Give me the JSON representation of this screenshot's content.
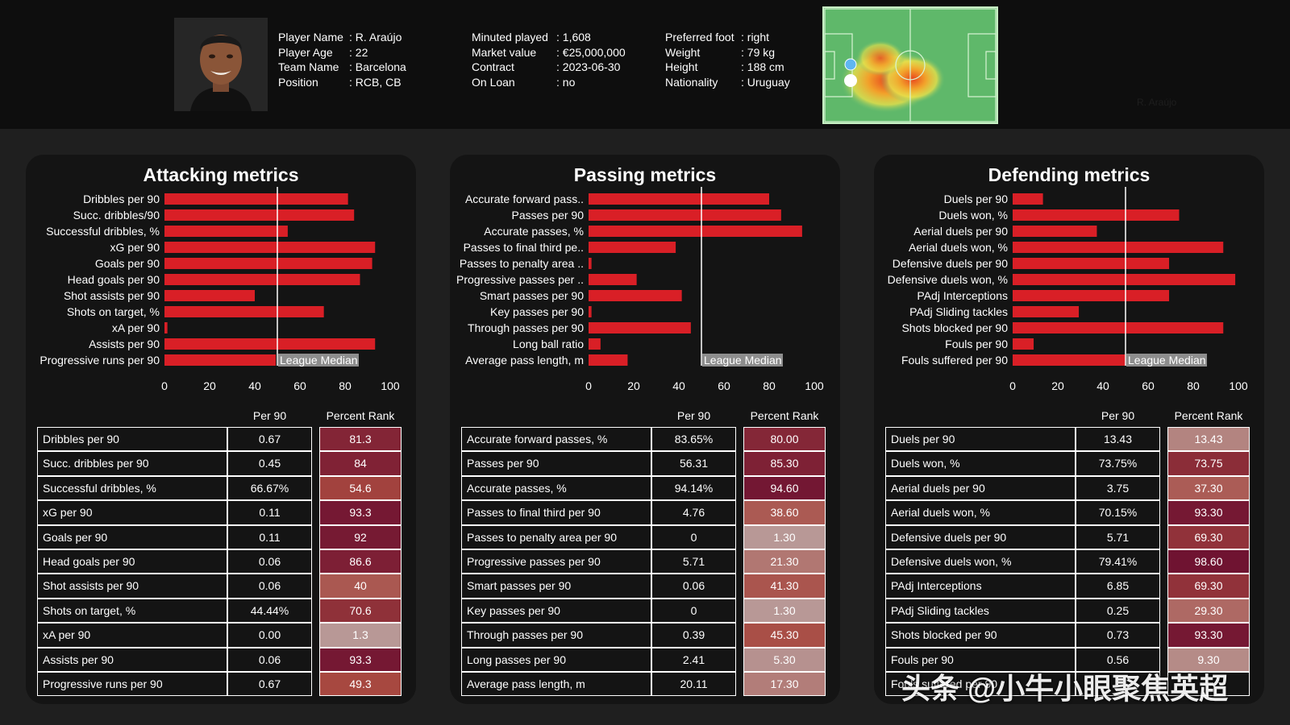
{
  "player": {
    "name_label": "Player Name",
    "name": "R. Araújo",
    "age_label": "Player Age",
    "age": "22",
    "team_label": "Team Name",
    "team": "Barcelona",
    "position_label": "Position",
    "position": "RCB, CB",
    "minutes_label": "Minuted played",
    "minutes": "1,608",
    "market_label": "Market value",
    "market": "€25,000,000",
    "contract_label": "Contract",
    "contract": "2023-06-30",
    "loan_label": "On Loan",
    "loan": "no",
    "foot_label": "Preferred foot",
    "foot": "right",
    "weight_label": "Weight",
    "weight": "79 kg",
    "height_label": "Height",
    "height": "188 cm",
    "nationality_label": "Nationality",
    "nationality": "Uruguay",
    "heatmap_caption": "R. Araújo"
  },
  "table_headers": {
    "per90": "Per 90",
    "rank": "Percent Rank"
  },
  "median_label": "League Median",
  "median_value": 50,
  "colors": {
    "bar": "#d91f26",
    "median_line": "#ffffff",
    "rank_low": "#b89a98",
    "rank_mid": "#a7473f",
    "rank_high": "#6d1131"
  },
  "watermark": "头条 @小牛小眼聚焦英超",
  "chart_data": [
    {
      "type": "bar",
      "orientation": "horizontal",
      "title": "Attacking metrics",
      "categories": [
        "Dribbles per 90",
        "Succ. dribbles/90",
        "Successful dribbles, %",
        "xG per 90",
        "Goals per 90",
        "Head goals per 90",
        "Shot assists per 90",
        "Shots on target, %",
        "xA per 90",
        "Assists per 90",
        "Progressive runs per 90"
      ],
      "values": [
        81.3,
        84,
        54.6,
        93.3,
        92,
        86.6,
        40,
        70.6,
        1.3,
        93.3,
        49.3
      ],
      "xlim": [
        0,
        100
      ],
      "xticks": [
        0,
        20,
        40,
        60,
        80,
        100
      ],
      "table": [
        [
          "Dribbles per 90",
          "0.67",
          "81.3"
        ],
        [
          "Succ. dribbles per 90",
          "0.45",
          "84"
        ],
        [
          "Successful dribbles, %",
          "66.67%",
          "54.6"
        ],
        [
          "xG per 90",
          "0.11",
          "93.3"
        ],
        [
          "Goals per 90",
          "0.11",
          "92"
        ],
        [
          "Head goals per 90",
          "0.06",
          "86.6"
        ],
        [
          "Shot assists per 90",
          "0.06",
          "40"
        ],
        [
          "Shots on target, %",
          "44.44%",
          "70.6"
        ],
        [
          "xA per 90",
          "0.00",
          "1.3"
        ],
        [
          "Assists per 90",
          "0.06",
          "93.3"
        ],
        [
          "Progressive runs per 90",
          "0.67",
          "49.3"
        ]
      ]
    },
    {
      "type": "bar",
      "orientation": "horizontal",
      "title": "Passing metrics",
      "categories": [
        "Accurate forward pass..",
        "Passes per 90",
        "Accurate passes, %",
        "Passes to final third pe..",
        "Passes to penalty area ..",
        "Progressive passes per ..",
        "Smart passes per 90",
        "Key passes per 90",
        "Through passes per 90",
        "Long ball ratio",
        "Average pass length, m"
      ],
      "values": [
        80.0,
        85.3,
        94.6,
        38.6,
        1.3,
        21.3,
        41.3,
        1.3,
        45.3,
        5.3,
        17.3
      ],
      "xlim": [
        0,
        100
      ],
      "xticks": [
        0,
        20,
        40,
        60,
        80,
        100
      ],
      "table": [
        [
          "Accurate forward passes, %",
          "83.65%",
          "80.00"
        ],
        [
          "Passes per 90",
          "56.31",
          "85.30"
        ],
        [
          "Accurate passes, %",
          "94.14%",
          "94.60"
        ],
        [
          "Passes to final third per 90",
          "4.76",
          "38.60"
        ],
        [
          "Passes to penalty area per 90",
          "0",
          "1.30"
        ],
        [
          "Progressive passes per 90",
          "5.71",
          "21.30"
        ],
        [
          "Smart passes per 90",
          "0.06",
          "41.30"
        ],
        [
          "Key passes per 90",
          "0",
          "1.30"
        ],
        [
          "Through passes per 90",
          "0.39",
          "45.30"
        ],
        [
          "Long passes per 90",
          "2.41",
          "5.30"
        ],
        [
          "Average pass length, m",
          "20.11",
          "17.30"
        ]
      ]
    },
    {
      "type": "bar",
      "orientation": "horizontal",
      "title": "Defending metrics",
      "categories": [
        "Duels per 90",
        "Duels won, %",
        "Aerial duels per 90",
        "Aerial duels won, %",
        "Defensive duels per 90",
        "Defensive duels won, %",
        "PAdj Interceptions",
        "PAdj Sliding tackles",
        "Shots blocked per 90",
        "Fouls per 90",
        "Fouls suffered per 90"
      ],
      "values": [
        13.43,
        73.75,
        37.3,
        93.3,
        69.3,
        98.6,
        69.3,
        29.3,
        93.3,
        9.3,
        50
      ],
      "xlim": [
        0,
        100
      ],
      "xticks": [
        0,
        20,
        40,
        60,
        80,
        100
      ],
      "table": [
        [
          "Duels per 90",
          "13.43",
          "13.43"
        ],
        [
          "Duels won, %",
          "73.75%",
          "73.75"
        ],
        [
          "Aerial duels per 90",
          "3.75",
          "37.30"
        ],
        [
          "Aerial duels won, %",
          "70.15%",
          "93.30"
        ],
        [
          "Defensive duels per 90",
          "5.71",
          "69.30"
        ],
        [
          "Defensive duels won, %",
          "79.41%",
          "98.60"
        ],
        [
          "PAdj Interceptions",
          "6.85",
          "69.30"
        ],
        [
          "PAdj Sliding tackles",
          "0.25",
          "29.30"
        ],
        [
          "Shots blocked per 90",
          "0.73",
          "93.30"
        ],
        [
          "Fouls per 90",
          "0.56",
          "9.30"
        ],
        [
          "Fouls suffered per 90",
          "",
          ""
        ]
      ]
    }
  ]
}
